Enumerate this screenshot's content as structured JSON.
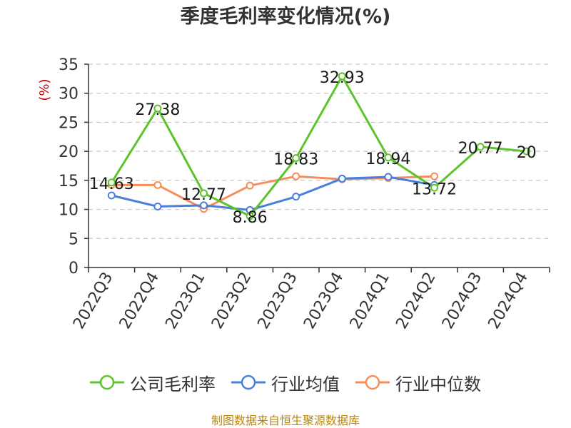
{
  "title": "季度毛利率变化情况(%)",
  "source_note": "制图数据来自恒生聚源数据库",
  "chart_data": {
    "type": "line",
    "title": "季度毛利率变化情况(%)",
    "ylabel": "(%)",
    "xlabel": "",
    "ylim": [
      0,
      35
    ],
    "yticks": [
      0,
      5,
      10,
      15,
      20,
      25,
      30,
      35
    ],
    "grid": true,
    "legend_position": "bottom",
    "categories": [
      "2022Q3",
      "2022Q4",
      "2023Q1",
      "2023Q2",
      "2023Q3",
      "2023Q4",
      "2024Q1",
      "2024Q2",
      "2024Q3",
      "2024Q4"
    ],
    "series": [
      {
        "name": "公司毛利率",
        "color": "#5cc42a",
        "values": [
          14.63,
          27.38,
          12.77,
          8.86,
          18.83,
          32.93,
          18.94,
          13.72,
          20.77,
          20
        ],
        "labels": [
          "14.63",
          "27.38",
          "12.77",
          "8.86",
          "18.83",
          "32.93",
          "18.94",
          "13.72",
          "20.77",
          "20"
        ]
      },
      {
        "name": "行业均值",
        "color": "#4a7fdc",
        "values": [
          12.4,
          10.5,
          10.7,
          9.9,
          12.2,
          15.3,
          15.6,
          14.2,
          null,
          null
        ]
      },
      {
        "name": "行业中位数",
        "color": "#f68d5a",
        "values": [
          14.2,
          14.2,
          10.1,
          14.1,
          15.7,
          15.2,
          15.4,
          15.7,
          null,
          null
        ]
      }
    ]
  }
}
